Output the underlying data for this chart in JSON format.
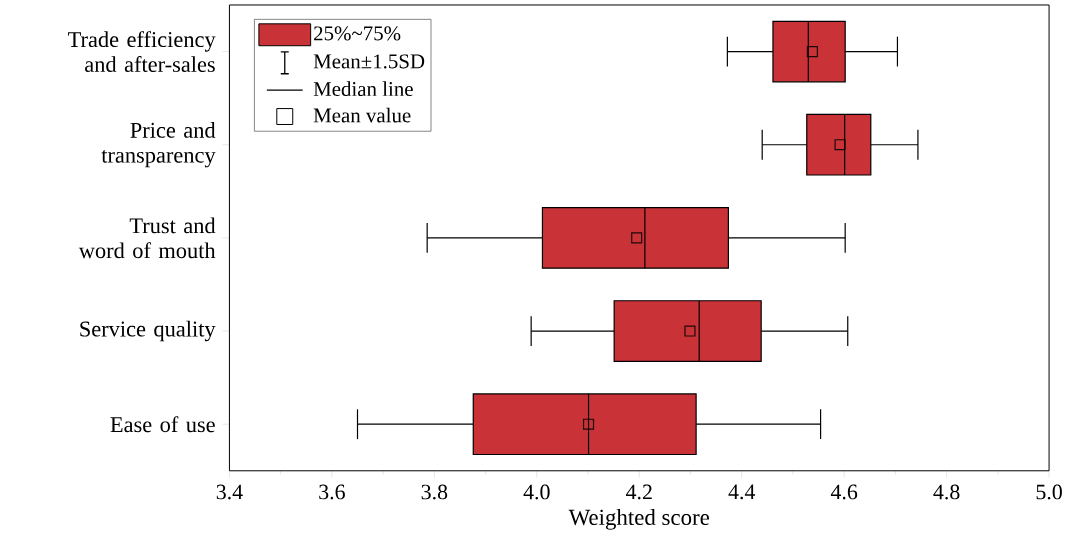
{
  "chart_data": {
    "type": "box",
    "orientation": "horizontal",
    "xlabel": "Weighted score",
    "categories": [
      "Trade efficiency and after-sales",
      "Price and transparency",
      "Trust and word of mouth",
      "Service quality",
      "Ease of use"
    ],
    "series": [
      {
        "name": "25%~75%",
        "color": "#c93337",
        "boxes": [
          {
            "low": 4.372,
            "q1": 4.461,
            "median": 4.53,
            "q3": 4.602,
            "high": 4.704,
            "mean": 4.538
          },
          {
            "low": 4.44,
            "q1": 4.527,
            "median": 4.601,
            "q3": 4.652,
            "high": 4.744,
            "mean": 4.592
          },
          {
            "low": 3.786,
            "q1": 4.011,
            "median": 4.211,
            "q3": 4.374,
            "high": 4.602,
            "mean": 4.195
          },
          {
            "low": 3.989,
            "q1": 4.151,
            "median": 4.317,
            "q3": 4.438,
            "high": 4.607,
            "mean": 4.299
          },
          {
            "low": 3.65,
            "q1": 3.876,
            "median": 4.101,
            "q3": 4.311,
            "high": 4.554,
            "mean": 4.101
          }
        ]
      }
    ],
    "annotations": [
      "Mean±1.5SD",
      "Median line",
      "Mean value"
    ],
    "xlim": [
      3.4,
      5.0
    ],
    "xticks": [
      {
        "value": 3.4,
        "label": "3.4"
      },
      {
        "value": 3.6,
        "label": "3.6"
      },
      {
        "value": 3.8,
        "label": "3.8"
      },
      {
        "value": 4.0,
        "label": "4.0"
      },
      {
        "value": 4.2,
        "label": "4.2"
      },
      {
        "value": 4.4,
        "label": "4.4"
      },
      {
        "value": 4.6,
        "label": "4.6"
      },
      {
        "value": 4.8,
        "label": "4.8"
      },
      {
        "value": 5.0,
        "label": "5.0"
      }
    ],
    "legend": "top left",
    "marker": "square"
  }
}
